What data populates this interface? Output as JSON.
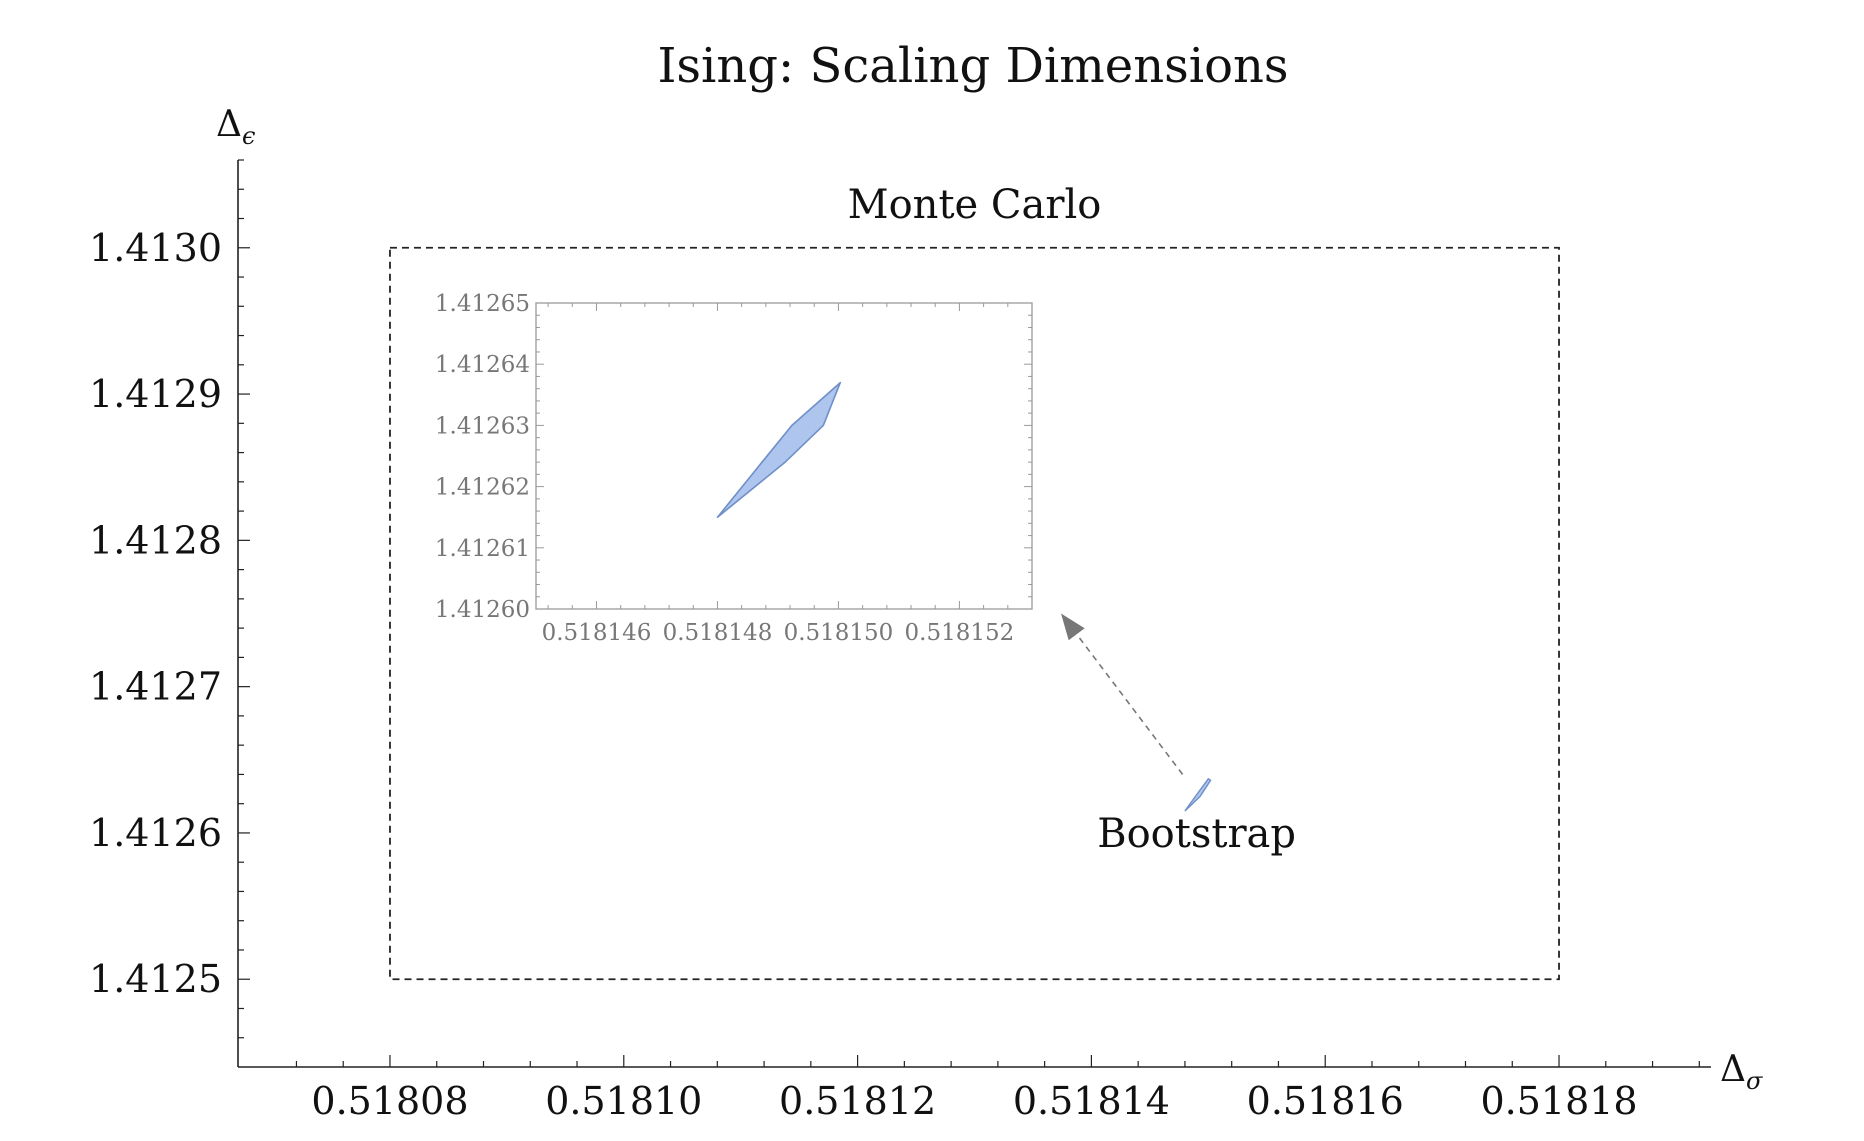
{
  "chart_data": [
    {
      "type": "area",
      "title": "Ising: Scaling Dimensions",
      "xlabel": "Δσ",
      "ylabel": "Δϵ",
      "x_axis_symbol": "Δ",
      "x_axis_subscript": "σ",
      "y_axis_symbol": "Δ",
      "y_axis_subscript": "ϵ",
      "xlim": [
        0.518067,
        0.518193
      ],
      "ylim": [
        1.41244,
        1.41306
      ],
      "x_ticks": [
        0.51808,
        0.5181,
        0.51812,
        0.51814,
        0.51816,
        0.51818
      ],
      "x_tick_labels": [
        "0.51808",
        "0.51810",
        "0.51812",
        "0.51814",
        "0.51816",
        "0.51818"
      ],
      "y_ticks": [
        1.4125,
        1.4126,
        1.4127,
        1.4128,
        1.4129,
        1.413
      ],
      "y_tick_labels": [
        "1.4125",
        "1.4126",
        "1.4127",
        "1.4128",
        "1.4129",
        "1.4130"
      ],
      "grid": false,
      "series": [
        {
          "name": "Monte Carlo",
          "kind": "rectangle",
          "x_range": [
            0.51808,
            0.51818
          ],
          "y_range": [
            1.4125,
            1.413
          ],
          "style": "dashed"
        },
        {
          "name": "Bootstrap",
          "kind": "region",
          "color": "#aec5ee",
          "edge_color": "#6f8fc8",
          "points": [
            [
              0.518148,
              1.412615
            ],
            [
              0.5181489,
              1.412625
            ],
            [
              0.51815,
              1.412637
            ],
            [
              0.5181502,
              1.412636
            ],
            [
              0.5181493,
              1.412625
            ],
            [
              0.518148,
              1.412615
            ]
          ]
        }
      ],
      "annotations": [
        {
          "text": "Monte Carlo",
          "at": [
            0.51813,
            1.41303
          ]
        },
        {
          "text": "Bootstrap",
          "at": [
            0.518149,
            1.4126
          ]
        }
      ],
      "arrow": {
        "from": [
          0.5181478,
          1.41264
        ],
        "to": [
          0.5181374,
          1.41275
        ],
        "style": "dashed",
        "color": "#777777"
      }
    },
    {
      "type": "area",
      "title": "",
      "xlabel": "",
      "ylabel": "",
      "xlim": [
        0.518145,
        0.5181532
      ],
      "ylim": [
        1.4126,
        1.41265
      ],
      "x_ticks": [
        0.518146,
        0.518148,
        0.51815,
        0.518152
      ],
      "x_tick_labels": [
        "0.518146",
        "0.518148",
        "0.518150",
        "0.518152"
      ],
      "y_ticks": [
        1.4126,
        1.41261,
        1.41262,
        1.41263,
        1.41264,
        1.41265
      ],
      "y_tick_labels": [
        "1.41260",
        "1.41261",
        "1.41262",
        "1.41263",
        "1.41264",
        "1.41265"
      ],
      "grid": false,
      "series": [
        {
          "kind": "region",
          "color": "#aec5ee",
          "edge_color": "#6f8fc8",
          "points": [
            [
              0.518148,
              1.412615
            ],
            [
              0.518148655,
              1.412623
            ],
            [
              0.51814923,
              1.41263
            ],
            [
              0.51815003,
              1.412637
            ],
            [
              0.51814975,
              1.41263
            ],
            [
              0.51814912,
              1.412624
            ],
            [
              0.518148,
              1.412615
            ]
          ]
        }
      ]
    }
  ]
}
